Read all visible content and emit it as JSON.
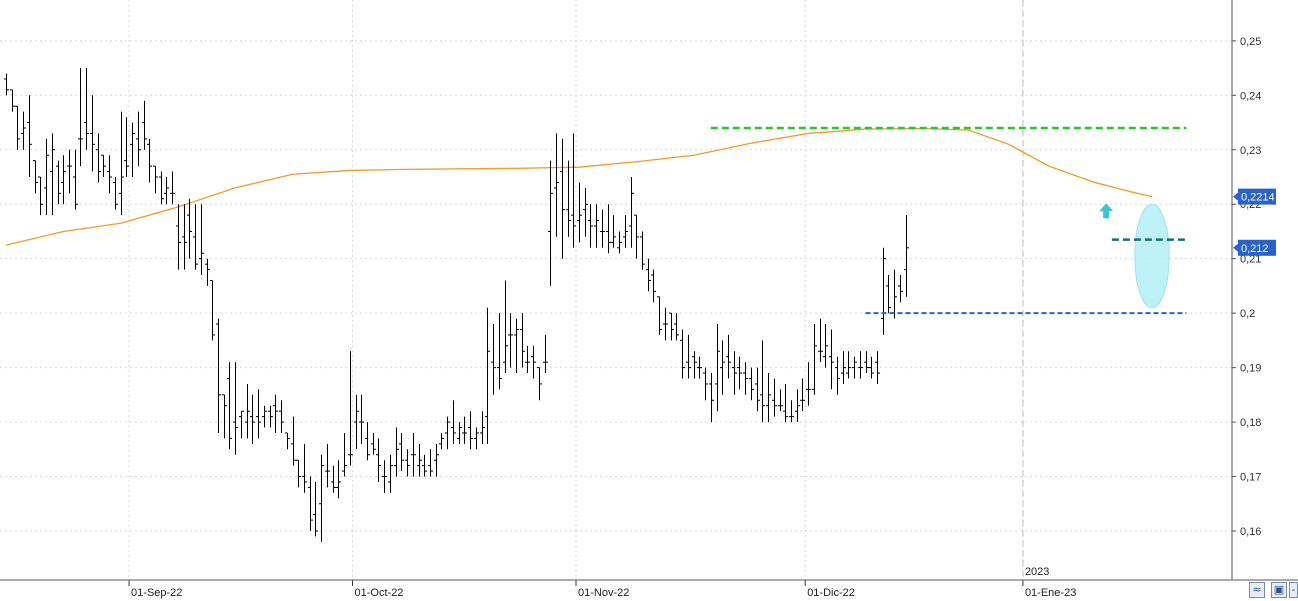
{
  "chart_data": {
    "type": "ohlc",
    "title": "",
    "xlabel": "",
    "ylabel": "",
    "ylim": [
      0.151,
      0.2575
    ],
    "y_ticks": [
      "0,16",
      "0,17",
      "0,18",
      "0,19",
      "0,2",
      "0,21",
      "0,22",
      "0,23",
      "0,24",
      "0,25"
    ],
    "y_tick_values": [
      0.16,
      0.17,
      0.18,
      0.19,
      0.2,
      0.21,
      0.22,
      0.23,
      0.24,
      0.25
    ],
    "x_labels": [
      {
        "label": "01-Sep-22",
        "bar": 22
      },
      {
        "label": "01-Oct-22",
        "bar": 61
      },
      {
        "label": "01-Nov-22",
        "bar": 100
      },
      {
        "label": "01-Dic-22",
        "bar": 140
      },
      {
        "label": "01-Ene-23",
        "bar": 178
      }
    ],
    "year_label": {
      "label": "2023",
      "bar": 178
    },
    "grid": true,
    "bars": [
      [
        0.243,
        0.244,
        0.24,
        0.241
      ],
      [
        0.241,
        0.241,
        0.237,
        0.238
      ],
      [
        0.238,
        0.238,
        0.23,
        0.232
      ],
      [
        0.233,
        0.237,
        0.23,
        0.234
      ],
      [
        0.235,
        0.24,
        0.225,
        0.231
      ],
      [
        0.228,
        0.228,
        0.222,
        0.224
      ],
      [
        0.225,
        0.225,
        0.218,
        0.22
      ],
      [
        0.223,
        0.232,
        0.218,
        0.229
      ],
      [
        0.226,
        0.233,
        0.218,
        0.23
      ],
      [
        0.227,
        0.228,
        0.22,
        0.222
      ],
      [
        0.224,
        0.229,
        0.22,
        0.226
      ],
      [
        0.227,
        0.23,
        0.222,
        0.227
      ],
      [
        0.225,
        0.23,
        0.219,
        0.22
      ],
      [
        0.232,
        0.245,
        0.227,
        0.232
      ],
      [
        0.235,
        0.245,
        0.23,
        0.233
      ],
      [
        0.233,
        0.24,
        0.226,
        0.231
      ],
      [
        0.23,
        0.233,
        0.224,
        0.226
      ],
      [
        0.229,
        0.229,
        0.225,
        0.227
      ],
      [
        0.226,
        0.229,
        0.222,
        0.225
      ],
      [
        0.224,
        0.225,
        0.219,
        0.22
      ],
      [
        0.222,
        0.237,
        0.218,
        0.225
      ],
      [
        0.228,
        0.236,
        0.225,
        0.227
      ],
      [
        0.231,
        0.235,
        0.225,
        0.233
      ],
      [
        0.232,
        0.237,
        0.227,
        0.23
      ],
      [
        0.235,
        0.239,
        0.23,
        0.232
      ],
      [
        0.231,
        0.232,
        0.224,
        0.227
      ],
      [
        0.227,
        0.227,
        0.222,
        0.225
      ],
      [
        0.225,
        0.226,
        0.22,
        0.221
      ],
      [
        0.222,
        0.225,
        0.22,
        0.223
      ],
      [
        0.222,
        0.226,
        0.22,
        0.222
      ],
      [
        0.216,
        0.22,
        0.208,
        0.213
      ],
      [
        0.214,
        0.22,
        0.208,
        0.213
      ],
      [
        0.218,
        0.221,
        0.21,
        0.215
      ],
      [
        0.214,
        0.22,
        0.208,
        0.209
      ],
      [
        0.21,
        0.22,
        0.207,
        0.211
      ],
      [
        0.209,
        0.21,
        0.205,
        0.208
      ],
      [
        0.206,
        0.206,
        0.195,
        0.196
      ],
      [
        0.198,
        0.199,
        0.178,
        0.185
      ],
      [
        0.185,
        0.185,
        0.177,
        0.183
      ],
      [
        0.188,
        0.191,
        0.175,
        0.177
      ],
      [
        0.18,
        0.191,
        0.174,
        0.179
      ],
      [
        0.181,
        0.182,
        0.177,
        0.182
      ],
      [
        0.18,
        0.187,
        0.177,
        0.182
      ],
      [
        0.181,
        0.185,
        0.176,
        0.18
      ],
      [
        0.181,
        0.186,
        0.177,
        0.18
      ],
      [
        0.181,
        0.183,
        0.179,
        0.182
      ],
      [
        0.182,
        0.183,
        0.179,
        0.181
      ],
      [
        0.183,
        0.185,
        0.178,
        0.182
      ],
      [
        0.182,
        0.184,
        0.178,
        0.18
      ],
      [
        0.178,
        0.178,
        0.175,
        0.177
      ],
      [
        0.176,
        0.181,
        0.172,
        0.173
      ],
      [
        0.173,
        0.173,
        0.168,
        0.17
      ],
      [
        0.17,
        0.176,
        0.167,
        0.169
      ],
      [
        0.168,
        0.17,
        0.16,
        0.162
      ],
      [
        0.163,
        0.169,
        0.159,
        0.16
      ],
      [
        0.165,
        0.174,
        0.158,
        0.172
      ],
      [
        0.171,
        0.176,
        0.168,
        0.171
      ],
      [
        0.169,
        0.172,
        0.167,
        0.168
      ],
      [
        0.168,
        0.173,
        0.166,
        0.169
      ],
      [
        0.171,
        0.178,
        0.17,
        0.172
      ],
      [
        0.174,
        0.193,
        0.172,
        0.174
      ],
      [
        0.18,
        0.185,
        0.175,
        0.182
      ],
      [
        0.18,
        0.185,
        0.176,
        0.18
      ],
      [
        0.177,
        0.18,
        0.173,
        0.174
      ],
      [
        0.176,
        0.178,
        0.174,
        0.175
      ],
      [
        0.174,
        0.177,
        0.169,
        0.172
      ],
      [
        0.17,
        0.173,
        0.167,
        0.17
      ],
      [
        0.169,
        0.174,
        0.167,
        0.172
      ],
      [
        0.172,
        0.179,
        0.17,
        0.175
      ],
      [
        0.176,
        0.178,
        0.171,
        0.173
      ],
      [
        0.173,
        0.175,
        0.17,
        0.172
      ],
      [
        0.174,
        0.178,
        0.17,
        0.174
      ],
      [
        0.172,
        0.176,
        0.17,
        0.173
      ],
      [
        0.172,
        0.174,
        0.17,
        0.171
      ],
      [
        0.172,
        0.175,
        0.17,
        0.171
      ],
      [
        0.173,
        0.176,
        0.17,
        0.174
      ],
      [
        0.176,
        0.178,
        0.175,
        0.177
      ],
      [
        0.178,
        0.181,
        0.175,
        0.18
      ],
      [
        0.179,
        0.184,
        0.176,
        0.178
      ],
      [
        0.177,
        0.18,
        0.176,
        0.179
      ],
      [
        0.178,
        0.181,
        0.176,
        0.178
      ],
      [
        0.179,
        0.182,
        0.175,
        0.177
      ],
      [
        0.177,
        0.179,
        0.175,
        0.178
      ],
      [
        0.178,
        0.182,
        0.176,
        0.179
      ],
      [
        0.181,
        0.201,
        0.176,
        0.193
      ],
      [
        0.191,
        0.198,
        0.185,
        0.19
      ],
      [
        0.19,
        0.2,
        0.186,
        0.188
      ],
      [
        0.191,
        0.206,
        0.189,
        0.194
      ],
      [
        0.196,
        0.2,
        0.19,
        0.196
      ],
      [
        0.196,
        0.199,
        0.189,
        0.197
      ],
      [
        0.197,
        0.2,
        0.19,
        0.193
      ],
      [
        0.191,
        0.194,
        0.189,
        0.191
      ],
      [
        0.192,
        0.194,
        0.188,
        0.191
      ],
      [
        0.19,
        0.19,
        0.184,
        0.187
      ],
      [
        0.191,
        0.196,
        0.189,
        0.191
      ],
      [
        0.215,
        0.228,
        0.205,
        0.222
      ],
      [
        0.223,
        0.233,
        0.214,
        0.224
      ],
      [
        0.226,
        0.232,
        0.21,
        0.219
      ],
      [
        0.219,
        0.228,
        0.214,
        0.217
      ],
      [
        0.218,
        0.233,
        0.212,
        0.216
      ],
      [
        0.217,
        0.224,
        0.213,
        0.218
      ],
      [
        0.219,
        0.223,
        0.214,
        0.22
      ],
      [
        0.217,
        0.22,
        0.212,
        0.216
      ],
      [
        0.216,
        0.22,
        0.212,
        0.217
      ],
      [
        0.215,
        0.219,
        0.212,
        0.215
      ],
      [
        0.215,
        0.22,
        0.211,
        0.213
      ],
      [
        0.213,
        0.218,
        0.212,
        0.214
      ],
      [
        0.212,
        0.215,
        0.211,
        0.213
      ],
      [
        0.214,
        0.218,
        0.212,
        0.215
      ],
      [
        0.216,
        0.225,
        0.212,
        0.222
      ],
      [
        0.218,
        0.218,
        0.21,
        0.214
      ],
      [
        0.214,
        0.215,
        0.208,
        0.209
      ],
      [
        0.208,
        0.21,
        0.204,
        0.206
      ],
      [
        0.207,
        0.208,
        0.202,
        0.204
      ],
      [
        0.203,
        0.203,
        0.196,
        0.197
      ],
      [
        0.198,
        0.201,
        0.195,
        0.198
      ],
      [
        0.2,
        0.2,
        0.195,
        0.197
      ],
      [
        0.198,
        0.2,
        0.195,
        0.196
      ],
      [
        0.195,
        0.197,
        0.188,
        0.19
      ],
      [
        0.191,
        0.196,
        0.188,
        0.19
      ],
      [
        0.192,
        0.193,
        0.188,
        0.191
      ],
      [
        0.19,
        0.192,
        0.188,
        0.19
      ],
      [
        0.189,
        0.19,
        0.184,
        0.187
      ],
      [
        0.187,
        0.189,
        0.18,
        0.184
      ],
      [
        0.187,
        0.198,
        0.182,
        0.193
      ],
      [
        0.19,
        0.195,
        0.185,
        0.191
      ],
      [
        0.192,
        0.196,
        0.188,
        0.191
      ],
      [
        0.19,
        0.193,
        0.185,
        0.189
      ],
      [
        0.19,
        0.192,
        0.186,
        0.189
      ],
      [
        0.189,
        0.191,
        0.185,
        0.188
      ],
      [
        0.188,
        0.19,
        0.184,
        0.186
      ],
      [
        0.187,
        0.19,
        0.182,
        0.184
      ],
      [
        0.185,
        0.195,
        0.18,
        0.183
      ],
      [
        0.183,
        0.189,
        0.18,
        0.185
      ],
      [
        0.184,
        0.188,
        0.181,
        0.183
      ],
      [
        0.183,
        0.186,
        0.182,
        0.183
      ],
      [
        0.182,
        0.187,
        0.18,
        0.181
      ],
      [
        0.181,
        0.184,
        0.18,
        0.181
      ],
      [
        0.182,
        0.186,
        0.18,
        0.183
      ],
      [
        0.184,
        0.188,
        0.182,
        0.184
      ],
      [
        0.186,
        0.191,
        0.183,
        0.186
      ],
      [
        0.186,
        0.198,
        0.185,
        0.194
      ],
      [
        0.193,
        0.199,
        0.191,
        0.193
      ],
      [
        0.192,
        0.198,
        0.19,
        0.194
      ],
      [
        0.192,
        0.197,
        0.186,
        0.191
      ],
      [
        0.19,
        0.192,
        0.185,
        0.188
      ],
      [
        0.189,
        0.193,
        0.187,
        0.19
      ],
      [
        0.189,
        0.193,
        0.188,
        0.19
      ],
      [
        0.19,
        0.192,
        0.188,
        0.191
      ],
      [
        0.19,
        0.193,
        0.188,
        0.19
      ],
      [
        0.191,
        0.193,
        0.189,
        0.19
      ],
      [
        0.19,
        0.192,
        0.188,
        0.189
      ],
      [
        0.191,
        0.193,
        0.187,
        0.189
      ],
      [
        0.199,
        0.212,
        0.196,
        0.21
      ],
      [
        0.205,
        0.207,
        0.2,
        0.201
      ],
      [
        0.2,
        0.208,
        0.199,
        0.203
      ],
      [
        0.205,
        0.207,
        0.202,
        0.204
      ],
      [
        0.208,
        0.218,
        0.203,
        0.212
      ]
    ],
    "moving_average": {
      "color": "#f29b2c",
      "points": [
        [
          0,
          0.2125
        ],
        [
          10,
          0.215
        ],
        [
          20,
          0.2165
        ],
        [
          30,
          0.2195
        ],
        [
          40,
          0.223
        ],
        [
          50,
          0.2255
        ],
        [
          60,
          0.2262
        ],
        [
          70,
          0.2264
        ],
        [
          80,
          0.2265
        ],
        [
          90,
          0.2266
        ],
        [
          100,
          0.2268
        ],
        [
          110,
          0.2278
        ],
        [
          120,
          0.229
        ],
        [
          130,
          0.2312
        ],
        [
          140,
          0.233
        ],
        [
          150,
          0.2338
        ],
        [
          160,
          0.2339
        ],
        [
          168,
          0.2336
        ],
        [
          175,
          0.231
        ],
        [
          182,
          0.227
        ],
        [
          190,
          0.224
        ],
        [
          197,
          0.2221
        ],
        [
          200,
          0.2214
        ]
      ]
    },
    "resistance_line": {
      "value": 0.234,
      "color": "#22cc22",
      "from_bar": 123,
      "to_bar": 206
    },
    "breakout_line": {
      "value": 0.2135,
      "color": "#1a7070",
      "from_bar": 193,
      "to_bar": 206
    },
    "support_line": {
      "value": 0.2,
      "color": "#2a62c9",
      "from_bar": 150,
      "to_bar": 206
    },
    "highlight_ellipse": {
      "color": "#b3f0f7",
      "center_bar": 200,
      "center_value": 0.2105,
      "width_bars": 6,
      "height_value": 0.019
    },
    "arrow": {
      "color": "#3ec4d0",
      "bar": 192,
      "value": 0.2187,
      "direction": "up"
    },
    "price_tags": [
      {
        "label": "0,2214",
        "value": 0.2214,
        "color": "#2a62c9"
      },
      {
        "label": "0,212",
        "value": 0.212,
        "color": "#2a62c9"
      }
    ]
  }
}
